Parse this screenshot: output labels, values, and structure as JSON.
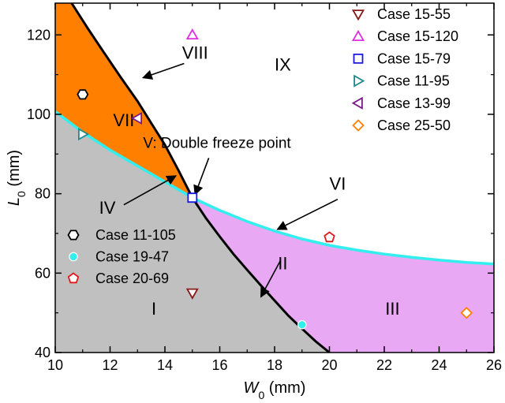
{
  "chart_data": {
    "type": "scatter",
    "xlabel": "W",
    "xlabel_sub": "0",
    "xlabel_unit": " (mm)",
    "ylabel": "L",
    "ylabel_sub": "0",
    "ylabel_unit": " (mm)",
    "xlim": [
      10,
      26
    ],
    "ylim": [
      40,
      128
    ],
    "x_ticks": [
      10,
      12,
      14,
      16,
      18,
      20,
      22,
      24,
      26
    ],
    "y_ticks": [
      40,
      60,
      80,
      100,
      120
    ],
    "grid": false,
    "colors": {
      "region_I": "#c0c0c0",
      "region_VII": "#ff8000",
      "region_III": "#e9a8f3",
      "curve_VIII_II": "#000000",
      "curve_IV_VI": "#33eeee"
    },
    "curves": {
      "VIII_II": {
        "points": [
          [
            10.6,
            128
          ],
          [
            11.2,
            121.5
          ],
          [
            11.8,
            115.3
          ],
          [
            12.4,
            109.2
          ],
          [
            13.0,
            103.3
          ],
          [
            13.5,
            97.8
          ],
          [
            14.0,
            92.3
          ],
          [
            14.5,
            85.8
          ],
          [
            15.0,
            79.0
          ],
          [
            15.5,
            73.8
          ],
          [
            16.0,
            69.2
          ],
          [
            16.5,
            64.8
          ],
          [
            17.0,
            60.8
          ],
          [
            17.5,
            56.9
          ],
          [
            18.0,
            53.1
          ],
          [
            18.5,
            49.3
          ],
          [
            19.0,
            46.0
          ],
          [
            19.5,
            42.8
          ],
          [
            20.0,
            40.0
          ]
        ]
      },
      "IV_VI": {
        "points": [
          [
            10.0,
            100.7
          ],
          [
            11.0,
            95.5
          ],
          [
            12.0,
            91.0
          ],
          [
            13.0,
            87.0
          ],
          [
            14.0,
            83.0
          ],
          [
            15.0,
            79.0
          ],
          [
            16.0,
            75.8
          ],
          [
            17.0,
            73.0
          ],
          [
            18.0,
            70.6
          ],
          [
            19.0,
            68.6
          ],
          [
            20.0,
            67.0
          ],
          [
            21.0,
            65.8
          ],
          [
            22.0,
            64.8
          ],
          [
            23.0,
            64.0
          ],
          [
            24.0,
            63.3
          ],
          [
            25.0,
            62.7
          ],
          [
            26.0,
            62.3
          ]
        ]
      }
    },
    "regions": [
      {
        "id": "I",
        "label": "I",
        "x": 13.6,
        "y": 49.5
      },
      {
        "id": "II",
        "label": "II",
        "x": 18.3,
        "y": 61.0
      },
      {
        "id": "III",
        "label": "III",
        "x": 22.3,
        "y": 49.5
      },
      {
        "id": "IV",
        "label": "IV",
        "x": 11.9,
        "y": 75.0
      },
      {
        "id": "VI",
        "label": "VI",
        "x": 20.3,
        "y": 81.0
      },
      {
        "id": "VII",
        "label": "VII",
        "x": 12.5,
        "y": 97.0
      },
      {
        "id": "VIII",
        "label": "VIII",
        "x": 15.1,
        "y": 114.0
      },
      {
        "id": "IX",
        "label": "IX",
        "x": 18.3,
        "y": 111.0
      }
    ],
    "annotations": [
      {
        "id": "VIII",
        "from": [
          14.7,
          112.8
        ],
        "to": [
          13.2,
          109.2
        ]
      },
      {
        "id": "IV",
        "from": [
          12.5,
          77.2
        ],
        "to": [
          14.4,
          84.5
        ]
      },
      {
        "id": "VI",
        "from": [
          20.3,
          78.6
        ],
        "to": [
          18.1,
          71.0
        ]
      },
      {
        "id": "II",
        "from": [
          18.2,
          63.0
        ],
        "to": [
          17.5,
          54.0
        ]
      },
      {
        "id": "double",
        "from": [
          15.6,
          89.0
        ],
        "to": [
          15.1,
          79.8
        ]
      }
    ],
    "double_freeze_label": "V: Double freeze point",
    "double_freeze_label_pos": [
      15.9,
      91.5
    ],
    "series": [
      {
        "name": "Case 15-55",
        "marker": "triangle-down",
        "color": "#8b1a1a",
        "x": 15,
        "y": 55
      },
      {
        "name": "Case 15-120",
        "marker": "triangle-up",
        "color": "#e02ee0",
        "x": 15,
        "y": 120
      },
      {
        "name": "Case 15-79",
        "marker": "square",
        "color": "#1a1ae0",
        "x": 15,
        "y": 79
      },
      {
        "name": "Case 11-95",
        "marker": "triangle-right",
        "color": "#1a8a8a",
        "x": 11,
        "y": 95
      },
      {
        "name": "Case 13-99",
        "marker": "triangle-left",
        "color": "#7a1a8a",
        "x": 13,
        "y": 99
      },
      {
        "name": "Case 25-50",
        "marker": "diamond",
        "color": "#ff8000",
        "x": 25,
        "y": 50
      },
      {
        "name": "Case 11-105",
        "marker": "hexagon",
        "color": "#000000",
        "x": 11,
        "y": 105
      },
      {
        "name": "Case 19-47",
        "marker": "circle",
        "color": "#33eeee",
        "x": 19,
        "y": 47
      },
      {
        "name": "Case 20-69",
        "marker": "pentagon",
        "color": "#e01a1a",
        "x": 20,
        "y": 69
      }
    ],
    "legend_right": [
      "Case 15-55",
      "Case 15-120",
      "Case 15-79",
      "Case 11-95",
      "Case 13-99",
      "Case 25-50"
    ],
    "legend_left": [
      "Case 11-105",
      "Case 19-47",
      "Case 20-69"
    ]
  }
}
